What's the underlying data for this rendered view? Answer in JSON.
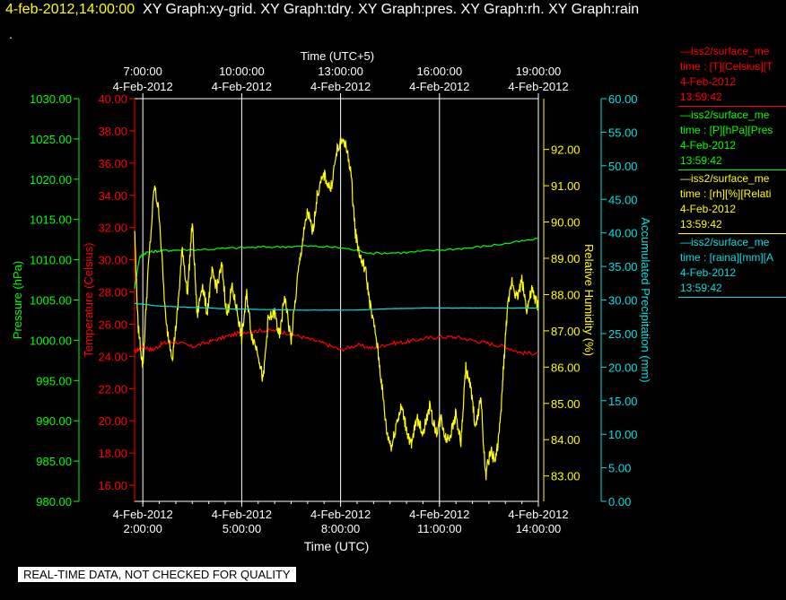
{
  "header": {
    "timestamp": "4-feb-2012,14:00:00",
    "titles": "XY Graph:xy-grid.  XY Graph:tdry.  XY Graph:pres.  XY Graph:rh.  XY Graph:rain",
    "dot": "."
  },
  "notice": "REAL-TIME DATA, NOT CHECKED FOR QUALITY",
  "legend": [
    {
      "line1": "—iss2/surface_me",
      "line2": "time : [T][Celsius][T",
      "date": "4-Feb-2012",
      "time": "13:59:42",
      "color": "#ff0000"
    },
    {
      "line1": "—iss2/surface_me",
      "line2": "time : [P][hPa][Pres",
      "date": "4-Feb-2012",
      "time": "13:59:42",
      "color": "#00ff00"
    },
    {
      "line1": "—iss2/surface_me",
      "line2": "time : [rh][%][Relati",
      "date": "4-Feb-2012",
      "time": "13:59:42",
      "color": "#ffff00"
    },
    {
      "line1": "—iss2/surface_me",
      "line2": "time : [raina][mm][A",
      "date": "4-Feb-2012",
      "time": "13:59:42",
      "color": "#00e0e0"
    }
  ],
  "chart_data": {
    "type": "line",
    "grid": true,
    "x_bottom": {
      "label": "Time (UTC)",
      "range": [
        "4-Feb-2012 01:45",
        "4-Feb-2012 14:00"
      ],
      "ticks": [
        {
          "t": 2,
          "date": "4-Feb-2012",
          "time": "2:00:00"
        },
        {
          "t": 5,
          "date": "4-Feb-2012",
          "time": "5:00:00"
        },
        {
          "t": 8,
          "date": "4-Feb-2012",
          "time": "8:00:00"
        },
        {
          "t": 11,
          "date": "4-Feb-2012",
          "time": "11:00:00"
        },
        {
          "t": 14,
          "date": "4-Feb-2012",
          "time": "14:00:00"
        }
      ]
    },
    "x_top": {
      "label": "Time (UTC+5)",
      "ticks": [
        {
          "t": 2,
          "time": "7:00:00",
          "date": "4-Feb-2012"
        },
        {
          "t": 5,
          "time": "10:00:00",
          "date": "4-Feb-2012"
        },
        {
          "t": 8,
          "time": "13:00:00",
          "date": "4-Feb-2012"
        },
        {
          "t": 11,
          "time": "16:00:00",
          "date": "4-Feb-2012"
        },
        {
          "t": 14,
          "time": "19:00:00",
          "date": "4-Feb-2012"
        }
      ]
    },
    "axes": {
      "pressure": {
        "label": "Pressure (hPa)",
        "range": [
          980,
          1030
        ],
        "ticks": [
          "980.00",
          "985.00",
          "990.00",
          "995.00",
          "1000.00",
          "1005.00",
          "1010.00",
          "1015.00",
          "1020.00",
          "1025.00",
          "1030.00"
        ],
        "color": "#00ff00"
      },
      "temperature": {
        "label": "Temperature (Celsius)",
        "range": [
          15,
          40
        ],
        "ticks": [
          "16.00",
          "18.00",
          "20.00",
          "22.00",
          "24.00",
          "26.00",
          "28.00",
          "30.00",
          "32.00",
          "34.00",
          "36.00",
          "38.00",
          "40.00"
        ],
        "color": "#ff0000"
      },
      "humidity": {
        "label": "Relative Humidity (%)",
        "range": [
          82.3,
          93.4
        ],
        "ticks": [
          "83.00",
          "84.00",
          "85.00",
          "86.00",
          "87.00",
          "88.00",
          "89.00",
          "90.00",
          "91.00",
          "92.00"
        ],
        "color": "#ffff00"
      },
      "precipitation": {
        "label": "Accumulated Precipitation (mm)",
        "range": [
          0,
          60
        ],
        "ticks": [
          "0.00",
          "5.00",
          "10.00",
          "15.00",
          "20.00",
          "25.00",
          "30.00",
          "35.00",
          "40.00",
          "45.00",
          "50.00",
          "55.00",
          "60.00"
        ],
        "color": "#00e0e0"
      }
    },
    "series": [
      {
        "key": "temperature",
        "axis": "temperature",
        "color": "#ff0000",
        "t": [
          1.75,
          2.0,
          2.3,
          2.6,
          3.0,
          3.5,
          4.0,
          4.5,
          5.0,
          5.5,
          6.0,
          6.5,
          7.0,
          7.5,
          8.0,
          8.5,
          9.0,
          9.5,
          10.0,
          10.5,
          11.0,
          11.5,
          12.0,
          12.5,
          13.0,
          13.5,
          14.0
        ],
        "v": [
          24.3,
          24.6,
          24.4,
          24.8,
          24.9,
          24.6,
          24.9,
          25.2,
          25.5,
          25.6,
          25.6,
          25.4,
          25.1,
          24.8,
          24.4,
          24.7,
          24.5,
          24.8,
          24.9,
          25.1,
          25.2,
          25.2,
          25.0,
          24.8,
          24.6,
          24.2,
          24.2
        ]
      },
      {
        "key": "pressure",
        "axis": "pressure",
        "color": "#00ff00",
        "t": [
          1.75,
          1.9,
          2.1,
          2.5,
          3.0,
          4.0,
          5.0,
          6.0,
          7.0,
          8.0,
          9.0,
          10.0,
          11.0,
          12.0,
          13.0,
          14.0
        ],
        "v": [
          1006.5,
          1010.3,
          1010.9,
          1011.1,
          1011.2,
          1011.3,
          1011.5,
          1011.6,
          1011.7,
          1011.5,
          1010.8,
          1010.9,
          1011.2,
          1011.5,
          1012.0,
          1012.6
        ]
      },
      {
        "key": "humidity",
        "axis": "humidity",
        "color": "#ffff00",
        "t": [
          1.75,
          1.85,
          2.0,
          2.15,
          2.35,
          2.5,
          2.7,
          2.9,
          3.05,
          3.2,
          3.35,
          3.5,
          3.65,
          3.8,
          3.95,
          4.1,
          4.25,
          4.4,
          4.55,
          4.7,
          4.85,
          5.0,
          5.15,
          5.3,
          5.5,
          5.65,
          5.8,
          6.0,
          6.15,
          6.3,
          6.5,
          6.7,
          6.85,
          7.0,
          7.15,
          7.3,
          7.5,
          7.7,
          7.9,
          8.1,
          8.3,
          8.45,
          8.6,
          8.75,
          8.9,
          9.1,
          9.25,
          9.4,
          9.55,
          9.7,
          9.85,
          10.0,
          10.15,
          10.3,
          10.5,
          10.7,
          10.9,
          11.05,
          11.2,
          11.35,
          11.5,
          11.65,
          11.8,
          11.95,
          12.1,
          12.25,
          12.4,
          12.55,
          12.7,
          12.85,
          12.95,
          13.05,
          13.2,
          13.35,
          13.5,
          13.65,
          13.8,
          13.9,
          14.0
        ],
        "v": [
          89.8,
          87.2,
          86.0,
          88.5,
          91.0,
          90.2,
          87.2,
          86.3,
          87.5,
          89.3,
          88.0,
          90.0,
          87.4,
          88.3,
          87.5,
          88.6,
          88.2,
          88.8,
          87.4,
          88.2,
          87.6,
          86.8,
          88.0,
          86.9,
          86.4,
          85.6,
          87.3,
          87.5,
          86.8,
          88.0,
          86.7,
          88.5,
          89.5,
          90.3,
          89.7,
          90.8,
          91.3,
          90.9,
          92.0,
          92.3,
          91.5,
          89.7,
          89.0,
          88.7,
          87.7,
          86.7,
          85.5,
          84.2,
          83.8,
          84.5,
          84.9,
          84.3,
          83.8,
          84.6,
          84.2,
          84.9,
          84.2,
          84.6,
          84.0,
          84.2,
          84.7,
          83.9,
          86.0,
          85.4,
          84.3,
          85.2,
          83.0,
          83.7,
          83.4,
          84.5,
          86.1,
          87.5,
          88.4,
          87.9,
          88.4,
          87.6,
          88.1,
          87.9,
          87.6
        ]
      },
      {
        "key": "precipitation",
        "axis": "precipitation",
        "color": "#00e0e0",
        "t": [
          1.75,
          2.5,
          3.5,
          4.5,
          5.5,
          6.5,
          7.5,
          8.5,
          9.5,
          10.5,
          11.5,
          12.5,
          13.5,
          14.0
        ],
        "v": [
          29.5,
          29.1,
          28.9,
          28.7,
          28.6,
          28.5,
          28.5,
          28.5,
          28.7,
          28.8,
          28.8,
          28.8,
          28.8,
          28.8
        ]
      }
    ]
  }
}
